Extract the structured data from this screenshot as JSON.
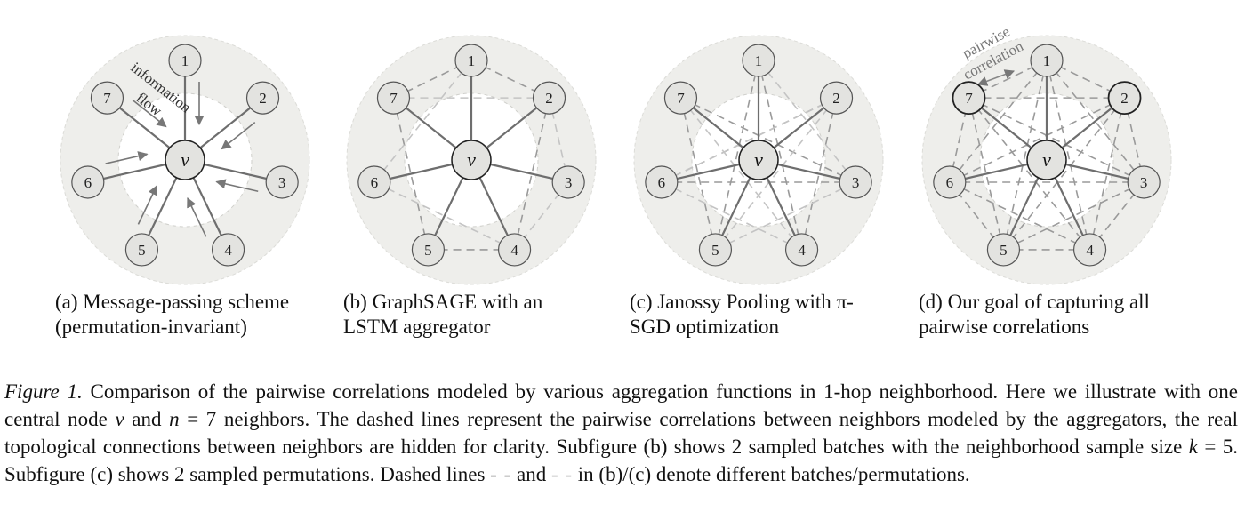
{
  "panels": [
    {
      "id": "a",
      "caption_line1": "(a) Message-passing scheme",
      "caption_line2": "(permutation-invariant)",
      "center_label": "v",
      "neighbor_labels": [
        "1",
        "2",
        "3",
        "4",
        "5",
        "6",
        "7"
      ],
      "annotation": [
        "information",
        "flow"
      ],
      "dashed_edges": []
    },
    {
      "id": "b",
      "caption_line1": "(b) GraphSAGE with an",
      "caption_line2": "LSTM aggregator",
      "center_label": "v",
      "neighbor_labels": [
        "1",
        "2",
        "3",
        "4",
        "5",
        "6",
        "7"
      ],
      "dashed_edges": [
        [
          "7",
          "1"
        ],
        [
          "1",
          "2"
        ],
        [
          "2",
          "4"
        ],
        [
          "4",
          "5"
        ],
        [
          "5",
          "7"
        ],
        [
          "7",
          "2"
        ],
        [
          "2",
          "3"
        ],
        [
          "3",
          "4"
        ],
        [
          "4",
          "6"
        ],
        [
          "6",
          "1"
        ]
      ]
    },
    {
      "id": "c",
      "caption_line1": "(c) Janossy Pooling with π-",
      "caption_line2": "SGD optimization",
      "center_label": "v",
      "neighbor_labels": [
        "1",
        "2",
        "3",
        "4",
        "5",
        "6",
        "7"
      ],
      "dashed_edges": [
        [
          "1",
          "5"
        ],
        [
          "5",
          "7"
        ],
        [
          "7",
          "3"
        ],
        [
          "3",
          "6"
        ],
        [
          "6",
          "2"
        ],
        [
          "2",
          "4"
        ],
        [
          "4",
          "1"
        ],
        [
          "7",
          "4"
        ],
        [
          "4",
          "6"
        ],
        [
          "6",
          "2"
        ],
        [
          "2",
          "5"
        ],
        [
          "5",
          "3"
        ],
        [
          "3",
          "1"
        ]
      ]
    },
    {
      "id": "d",
      "caption_line1": "(d) Our goal of capturing all",
      "caption_line2": "pairwise correlations",
      "center_label": "v",
      "neighbor_labels": [
        "1",
        "2",
        "3",
        "4",
        "5",
        "6",
        "7"
      ],
      "annotation": [
        "pairwise",
        "correlation"
      ],
      "dashed_edges": "all-pairs"
    }
  ],
  "caption": {
    "label": "Figure 1.",
    "t1": " Comparison of the pairwise correlations modeled by various aggregation functions in 1-hop neighborhood. Here we illustrate with one central node ",
    "m1": "v",
    "t2": " and ",
    "m2": "n",
    "t3": " = 7 neighbors. The dashed lines represent the pairwise correlations between neighbors modeled by the aggregators, the real topological connections between neighbors are hidden for clarity. Subfigure (b) shows 2 sampled batches with the neighborhood sample size ",
    "m3": "k",
    "t4": " = 5. Subfigure (c) shows 2 sampled permutations. Dashed lines ",
    "d1": "- -",
    "t5": " and ",
    "d2": "- -",
    "t6": " in (b)/(c) denote different batches/permutations."
  },
  "colors": {
    "outer_disc": "#eeeeeb",
    "inner_disc": "#ffffff",
    "node_fill": "#e3e3e0",
    "solid_edge": "#6e6e6e",
    "dash_dark": "#9a9a9a",
    "dash_light": "#c4c4c4"
  }
}
